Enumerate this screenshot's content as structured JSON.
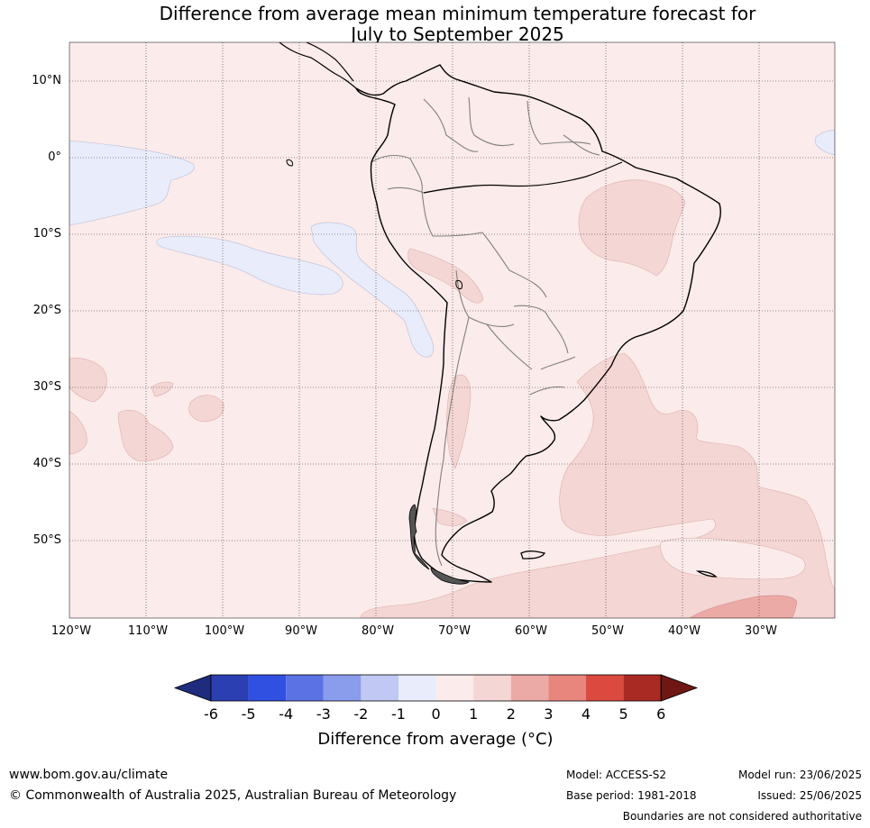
{
  "title": {
    "line1": "Difference from average mean minimum temperature forecast for",
    "line2": "July to September 2025"
  },
  "map": {
    "lat_labels": [
      "10°N",
      "0°",
      "10°S",
      "20°S",
      "30°S",
      "40°S",
      "50°S"
    ],
    "lon_labels": [
      "120°W",
      "110°W",
      "100°W",
      "90°W",
      "80°W",
      "70°W",
      "60°W",
      "50°W",
      "40°W",
      "30°W"
    ],
    "background_category": "0 to 1",
    "colors": {
      "zero_to_one": "#fbebea",
      "one_to_two": "#f4d6d4",
      "two_to_three": "#ebaaa6",
      "minus_one_to_zero": "#e9ecfa",
      "coastline": "#000000",
      "borders": "#808080"
    }
  },
  "colorbar": {
    "tick_labels": [
      "-6",
      "-5",
      "-4",
      "-3",
      "-2",
      "-1",
      "0",
      "1",
      "2",
      "3",
      "4",
      "5",
      "6"
    ],
    "colors": [
      "#1f2b7c",
      "#2b3fb2",
      "#3050e2",
      "#5b72e4",
      "#8a9cec",
      "#c0c8f3",
      "#e9ecfa",
      "#fbebea",
      "#f4d6d4",
      "#ebaaa6",
      "#e8867d",
      "#db4a3f",
      "#a92a22",
      "#6e1713"
    ],
    "label": "Difference from average (°C)"
  },
  "footer": {
    "website": "www.bom.gov.au/climate",
    "copyright": "© Commonwealth of Australia 2025, Australian Bureau of Meteorology",
    "model": "Model: ACCESS-S2",
    "base_period": "Base period: 1981-2018",
    "model_run": "Model run: 23/06/2025",
    "issued": "Issued: 25/06/2025",
    "disclaimer": "Boundaries are not considered authoritative"
  }
}
